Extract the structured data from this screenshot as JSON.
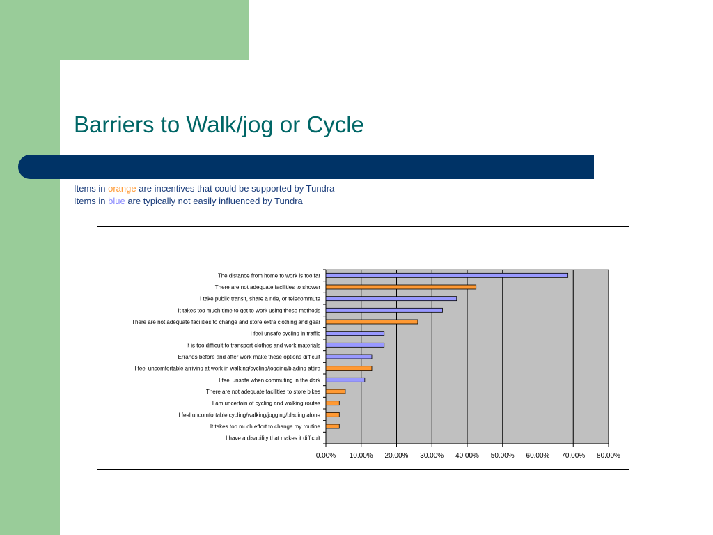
{
  "slide": {
    "title": "Barriers to Walk/jog or Cycle",
    "legend_line1": {
      "prefix": "Items in ",
      "highlight": "orange",
      "suffix": " are incentives that could be supported by Tundra"
    },
    "legend_line2": {
      "prefix": "Items in ",
      "highlight": "blue",
      "suffix": " are typically not easily influenced by Tundra"
    }
  },
  "colors": {
    "background_green": "#99cc99",
    "title_teal": "#006666",
    "band_navy": "#003366",
    "text_navy": "#1a3c7a",
    "orange": "#ff9933",
    "blue": "#9999ff",
    "plot_gray": "#c0c0c0"
  },
  "chart_data": {
    "type": "bar",
    "orientation": "horizontal",
    "categories": [
      "The distance from home to work is too far",
      "There are not adequate facilities to shower",
      "I take public transit, share a ride, or telecommute",
      "It takes too much time to get to work using these methods",
      "There are not adequate facilities to change and store extra clothing and gear",
      "I feel unsafe cycling in traffic",
      "It is too difficult to transport clothes and work materials",
      "Errands before and after work make these options difficult",
      "I feel uncomfortable arriving at work in walking/cycling/jogging/blading attire",
      "I feel unsafe when commuting in the dark",
      "There are not adequate facilities to store bikes",
      "I am uncertain of cycling and walking routes",
      "I feel uncomfortable cycling/walking/jogging/blading alone",
      "It takes too much effort to change my routine",
      "I have a disability that makes it difficult"
    ],
    "values": [
      68.5,
      42.5,
      37.0,
      33.0,
      26.0,
      16.5,
      16.5,
      13.0,
      13.0,
      11.0,
      5.5,
      3.8,
      3.8,
      3.8,
      0.0
    ],
    "bar_colors": [
      "blue",
      "orange",
      "blue",
      "blue",
      "orange",
      "blue",
      "blue",
      "blue",
      "orange",
      "blue",
      "orange",
      "orange",
      "orange",
      "orange",
      "blue"
    ],
    "xlim": [
      0,
      80
    ],
    "xticks": [
      "0.00%",
      "10.00%",
      "20.00%",
      "30.00%",
      "40.00%",
      "50.00%",
      "60.00%",
      "70.00%",
      "80.00%"
    ],
    "grid": true
  }
}
